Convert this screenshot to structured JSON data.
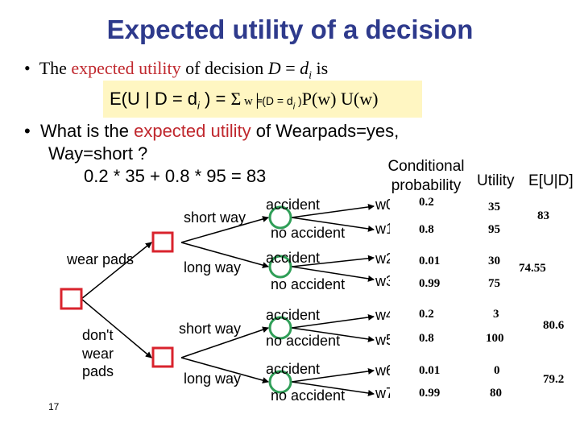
{
  "title": "Expected utility of a decision",
  "bullet1": {
    "prefix": "The ",
    "term": "expected utility",
    "middle": "  of decision ",
    "var_D": "D",
    "eq": " = ",
    "var_d": "d",
    "sub_i": "i",
    "suffix": " is"
  },
  "formula": {
    "lhs": "E(U | D = d",
    "sub_i": "i",
    "close": " ) = ",
    "sigma": "Σ",
    "w": " w",
    "models": "╞",
    "cond": "(D = d",
    "cond_sub": "i",
    "cond_close": " )",
    "rhs": "P(w) U(w)"
  },
  "bullet2": {
    "prefix": "What is the ",
    "term": "expected utility",
    "suffix": " of Wearpads=yes,",
    "line2": "Way=short ?",
    "calc": "0.2 * 35 + 0.8 * 95 = 83"
  },
  "headers": {
    "cond_prob_1": "Conditional",
    "cond_prob_2": "probability",
    "utility": "Utility",
    "eu": "E[U|D]"
  },
  "tree": {
    "root_labels": [
      "wear pads",
      "don't",
      "wear",
      "pads"
    ],
    "ways": [
      "short way",
      "long way",
      "short way",
      "long way"
    ],
    "outcomes": [
      "accident",
      "no accident",
      "accident",
      "no accident",
      "accident",
      "no accident",
      "accident",
      "no accident"
    ],
    "worlds": [
      "w0",
      "w1",
      "w2",
      "w3",
      "w4",
      "w5",
      "w6",
      "w7"
    ]
  },
  "rows": [
    {
      "prob": "0.2",
      "utility": "35"
    },
    {
      "prob": "0.8",
      "utility": "95"
    },
    {
      "prob": "0.01",
      "utility": "30"
    },
    {
      "prob": "0.99",
      "utility": "75"
    },
    {
      "prob": "0.2",
      "utility": "3"
    },
    {
      "prob": "0.8",
      "utility": "100"
    },
    {
      "prob": "0.01",
      "utility": "0"
    },
    {
      "prob": "0.99",
      "utility": "80"
    }
  ],
  "expected_utilities": [
    "83",
    "74.55",
    "80.6",
    "79.2"
  ],
  "page_number": "17",
  "colors": {
    "title": "#2e3a8c",
    "highlight": "#c0282e",
    "decision_node": "#d9232d",
    "chance_node": "#2f9e57",
    "formula_bg": "#fff6c2"
  }
}
